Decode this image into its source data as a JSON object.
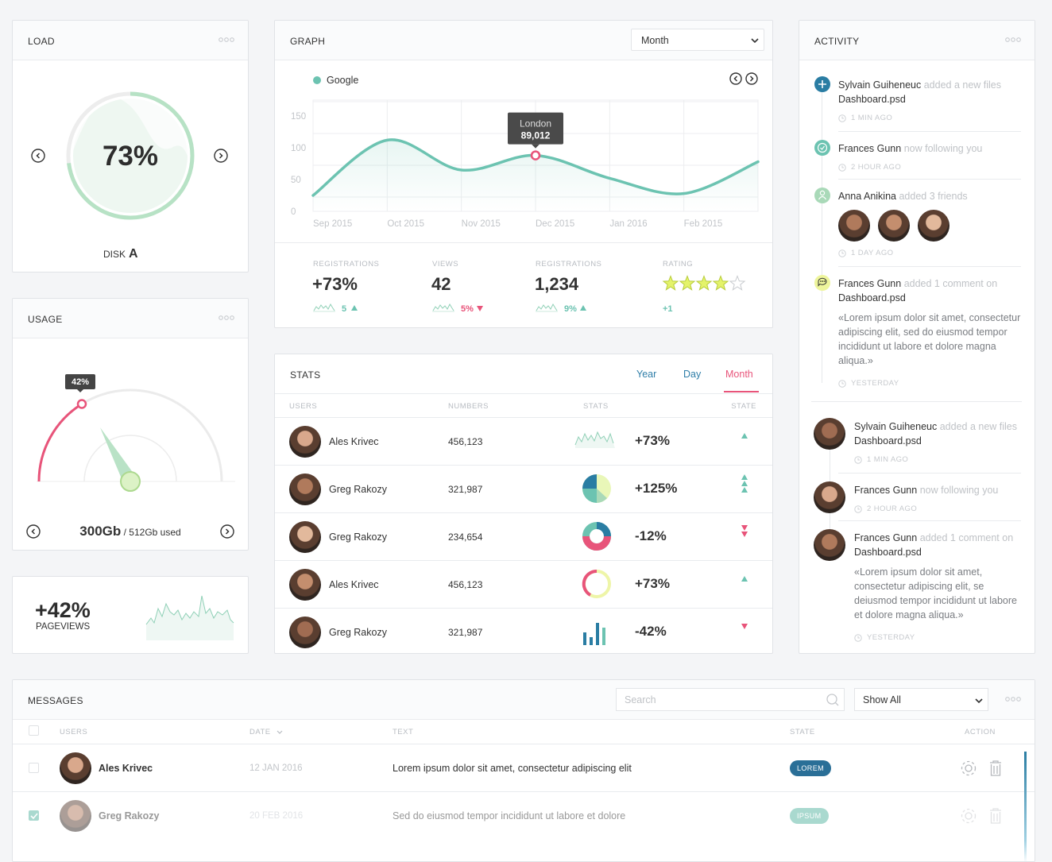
{
  "load": {
    "title": "LOAD",
    "value": "73%",
    "disk_label": "DISK",
    "disk": "A"
  },
  "usage": {
    "title": "USAGE",
    "badge": "42%",
    "used": "300Gb",
    "total": "/ 512Gb used"
  },
  "pageviews": {
    "value": "+42%",
    "label": "PAGEVIEWS"
  },
  "graph": {
    "title": "GRAPH",
    "select": "Month",
    "chart": {
      "type": "line",
      "categories": [
        "Sep 2015",
        "Oct 2015",
        "Nov 2015",
        "Dec 2015",
        "Jan 2016",
        "Feb 2015",
        null
      ],
      "series": [
        {
          "name": "Google",
          "color": "#6cc3b1",
          "values": [
            25,
            112,
            65,
            88,
            52,
            28,
            78
          ]
        }
      ],
      "ylim": [
        0,
        175
      ],
      "yticks": [
        0,
        50,
        100,
        150
      ],
      "grid": true,
      "tooltip": {
        "label": "London",
        "value": "89,012"
      }
    },
    "kpis": [
      {
        "label": "REGISTRATIONS",
        "value": "+73%",
        "change": "5"
      },
      {
        "label": "VIEWS",
        "value": "42",
        "change": "5%"
      },
      {
        "label": "REGISTRATIONS",
        "value": "1,234",
        "change": "9%"
      },
      {
        "label": "RATING",
        "change": "+1"
      }
    ]
  },
  "stats": {
    "title": "STATS",
    "tabs": [
      "Year",
      "Day",
      "Month"
    ],
    "columns": [
      "USERS",
      "NUMBERS",
      "STATS",
      "STATE"
    ],
    "rows": [
      {
        "name": "Ales Krivec",
        "number": "456,123",
        "change": "+73%"
      },
      {
        "name": "Greg Rakozy",
        "number": "321,987",
        "change": "+125%"
      },
      {
        "name": "Greg Rakozy",
        "number": "234,654",
        "change": "-12%"
      },
      {
        "name": "Ales Krivec",
        "number": "456,123",
        "change": "+73%"
      },
      {
        "name": "Greg Rakozy",
        "number": "321,987",
        "change": "-42%"
      }
    ]
  },
  "activity": {
    "title": "ACTIVITY",
    "items": [
      {
        "name": "Sylvain Guiheneuc",
        "action": "added a new files",
        "target": "Dashboard.psd",
        "time": "1 MIN AGO"
      },
      {
        "name": "Frances Gunn",
        "action": "now following you",
        "time": "2 HOUR AGO"
      },
      {
        "name": "Anna Anikina",
        "action": "added 3 friends",
        "time": "1 DAY AGO"
      },
      {
        "name": "Frances Gunn",
        "action": "added 1 comment on",
        "target": "Dashboard.psd",
        "comment": "«Lorem ipsum dolor sit amet, consectetur adipiscing elit, sed do eiusmod tempor incididunt ut labore et dolore magna aliqua.»",
        "time": "YESTERDAY"
      },
      {
        "name": "Sylvain Guiheneuc",
        "action": "added a new files",
        "target": "Dashboard.psd",
        "time": "1 MIN AGO"
      },
      {
        "name": "Frances Gunn",
        "action": "now following you",
        "time": "2 HOUR AGO"
      },
      {
        "name": "Frances Gunn",
        "action": "added 1 comment on",
        "target": "Dashboard.psd",
        "comment": "«Lorem ipsum dolor sit amet, consectetur adipiscing elit, se deiusmod tempor incididunt ut labore et dolore magna aliqua.»",
        "time": "YESTERDAY"
      }
    ]
  },
  "messages": {
    "title": "MESSAGES",
    "search": "Search",
    "filter": "Show All",
    "columns": [
      "USERS",
      "DATE",
      "TEXT",
      "STATE",
      "ACTION"
    ],
    "rows": [
      {
        "name": "Ales Krivec",
        "date": "12 JAN 2016",
        "text": "Lorem ipsum dolor sit amet, consectetur adipiscing elit",
        "state": "LOREM"
      },
      {
        "name": "Greg Rakozy",
        "date": "20 FEB 2016",
        "text": "Sed do eiusmod tempor incididunt ut labore et dolore",
        "state": "IPSUM"
      }
    ]
  }
}
